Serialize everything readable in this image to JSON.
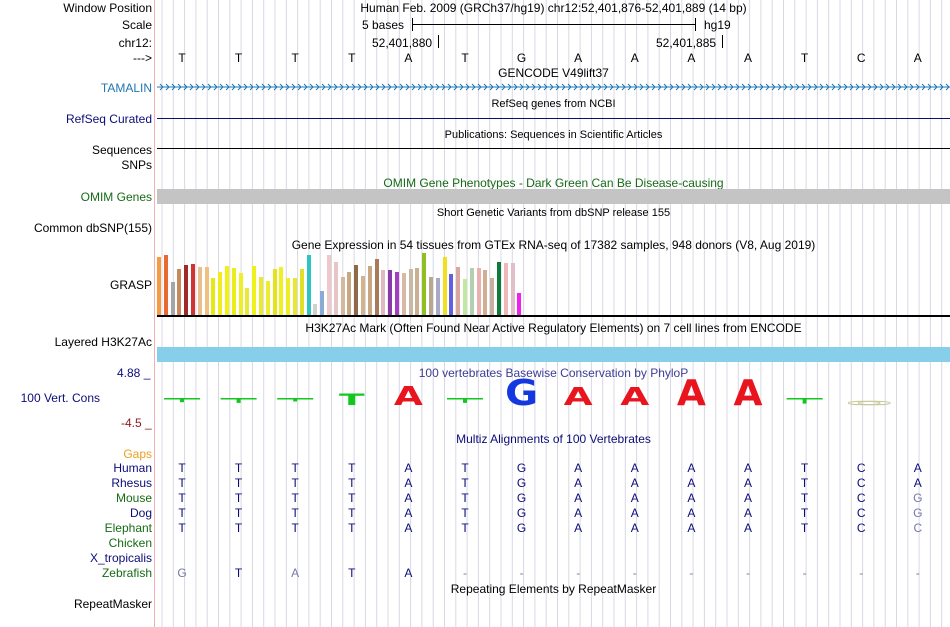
{
  "header": {
    "window_position_label": "Window Position",
    "position_text": "Human Feb. 2009 (GRCh37/hg19)   chr12:52,401,876-52,401,889 (14 bp)",
    "scale_label": "Scale",
    "scale_bases": "5 bases",
    "scale_assembly": "hg19",
    "chrom_label": "chr12:",
    "tick_left": "52,401,880",
    "tick_right": "52,401,885",
    "strand_label": "--->",
    "bases": [
      "T",
      "T",
      "T",
      "T",
      "A",
      "T",
      "G",
      "A",
      "A",
      "A",
      "A",
      "T",
      "C",
      "A"
    ]
  },
  "tracks": {
    "gencode": {
      "title": "GENCODE V49lift37",
      "label": "TAMALIN",
      "color": "#1f77b4"
    },
    "refseq": {
      "title": "RefSeq genes from NCBI",
      "label": "RefSeq Curated",
      "color": "#0c0c78"
    },
    "publications": {
      "title": "Publications: Sequences in Scientific Articles",
      "label": "Sequences"
    },
    "snps": {
      "label": "SNPs"
    },
    "omim": {
      "title": "OMIM Gene Phenotypes - Dark Green Can Be Disease-causing",
      "label": "OMIM Genes",
      "color": "#156b15"
    },
    "dbsnp": {
      "title": "Short Genetic Variants from dbSNP release 155",
      "label": "Common dbSNP(155)"
    },
    "gtex": {
      "title": "Gene Expression in 54 tissues from GTEx RNA-seq of 17382 samples, 948 donors (V8, Aug 2019)",
      "label": "GRASP",
      "bars": [
        {
          "v": 0.94,
          "c": "#f59b42"
        },
        {
          "v": 0.96,
          "c": "#e86a30"
        },
        {
          "v": 0.54,
          "c": "#a6a6a6"
        },
        {
          "v": 0.74,
          "c": "#c88a5c"
        },
        {
          "v": 0.8,
          "c": "#9e2a2a"
        },
        {
          "v": 0.82,
          "c": "#d13232"
        },
        {
          "v": 0.77,
          "c": "#e8c090"
        },
        {
          "v": 0.78,
          "c": "#f0c080"
        },
        {
          "v": 0.6,
          "c": "#e8e812"
        },
        {
          "v": 0.7,
          "c": "#eded20"
        },
        {
          "v": 0.79,
          "c": "#f2f20e"
        },
        {
          "v": 0.75,
          "c": "#ecec1a"
        },
        {
          "v": 0.68,
          "c": "#eeee2a"
        },
        {
          "v": 0.44,
          "c": "#e8e836"
        },
        {
          "v": 0.79,
          "c": "#f0f01c"
        },
        {
          "v": 0.62,
          "c": "#eaea2a"
        },
        {
          "v": 0.55,
          "c": "#eded30"
        },
        {
          "v": 0.74,
          "c": "#e4e41e"
        },
        {
          "v": 0.77,
          "c": "#f0f01e"
        },
        {
          "v": 0.6,
          "c": "#eeee28"
        },
        {
          "v": 0.6,
          "c": "#e8e830"
        },
        {
          "v": 0.74,
          "c": "#e0e028"
        },
        {
          "v": 0.96,
          "c": "#2ec4c4"
        },
        {
          "v": 0.18,
          "c": "#d0d0d0"
        },
        {
          "v": 0.38,
          "c": "#8aaad8"
        },
        {
          "v": 0.96,
          "c": "#f0c8c8"
        },
        {
          "v": 0.86,
          "c": "#e8c4c4"
        },
        {
          "v": 0.62,
          "c": "#d4b8a0"
        },
        {
          "v": 0.7,
          "c": "#c8a880"
        },
        {
          "v": 0.8,
          "c": "#8c6a4a"
        },
        {
          "v": 0.63,
          "c": "#d2b48c"
        },
        {
          "v": 0.79,
          "c": "#c8a882"
        },
        {
          "v": 0.9,
          "c": "#a87a5a"
        },
        {
          "v": 0.72,
          "c": "#e0b8c0"
        },
        {
          "v": 0.72,
          "c": "#8a3aa8"
        },
        {
          "v": 0.7,
          "c": "#a040c0"
        },
        {
          "v": 0.68,
          "c": "#d8b8a8"
        },
        {
          "v": 0.74,
          "c": "#c8b8a8"
        },
        {
          "v": 0.76,
          "c": "#c8b090"
        },
        {
          "v": 1.0,
          "c": "#90c020"
        },
        {
          "v": 0.62,
          "c": "#b8a890"
        },
        {
          "v": 0.6,
          "c": "#a8a8c8"
        },
        {
          "v": 0.94,
          "c": "#f0e020"
        },
        {
          "v": 0.66,
          "c": "#6060e0"
        },
        {
          "v": 0.78,
          "c": "#d8a8a0"
        },
        {
          "v": 0.58,
          "c": "#c0e8a0"
        },
        {
          "v": 0.76,
          "c": "#b0d0b0"
        },
        {
          "v": 0.76,
          "c": "#e8b0b0"
        },
        {
          "v": 0.72,
          "c": "#d0b090"
        },
        {
          "v": 0.6,
          "c": "#c8b0a0"
        },
        {
          "v": 0.86,
          "c": "#107a3a"
        },
        {
          "v": 0.84,
          "c": "#f0b8b8"
        },
        {
          "v": 0.84,
          "c": "#e0c0c8"
        },
        {
          "v": 0.36,
          "c": "#f020f0"
        }
      ]
    },
    "h3k27ac": {
      "title": "H3K27Ac Mark (Often Found Near Active Regulatory Elements) on 7 cell lines from ENCODE",
      "label": "Layered H3K27Ac",
      "color": "#87ceeb"
    },
    "phylop": {
      "title": "100 vertebrates Basewise Conservation by PhyloP",
      "label": "100 Vert. Cons",
      "max_label": "4.88 _",
      "min_label": "-4.5 _",
      "title_color": "#3c3c96",
      "scores": [
        -0.3,
        -0.35,
        -0.25,
        1.5,
        2.4,
        -0.35,
        3.3,
        2.3,
        2.3,
        3.3,
        3.3,
        -0.4,
        0,
        0
      ]
    },
    "multiz": {
      "title": "Multiz Alignments of 100 Vertebrates",
      "gaps_label": "Gaps",
      "rows": [
        {
          "label": "Human",
          "color": "#0c0c78",
          "bases": [
            "T",
            "T",
            "T",
            "T",
            "A",
            "T",
            "G",
            "A",
            "A",
            "A",
            "A",
            "T",
            "C",
            "A"
          ],
          "dim": []
        },
        {
          "label": "Rhesus",
          "color": "#0c0c78",
          "bases": [
            "T",
            "T",
            "T",
            "T",
            "A",
            "T",
            "G",
            "A",
            "A",
            "A",
            "A",
            "T",
            "C",
            "A"
          ],
          "dim": []
        },
        {
          "label": "Mouse",
          "color": "#156b15",
          "bases": [
            "T",
            "T",
            "T",
            "T",
            "A",
            "T",
            "G",
            "A",
            "A",
            "A",
            "A",
            "T",
            "C",
            "G"
          ],
          "dim": [
            13
          ]
        },
        {
          "label": "Dog",
          "color": "#0c0c78",
          "bases": [
            "T",
            "T",
            "T",
            "T",
            "A",
            "T",
            "G",
            "A",
            "A",
            "A",
            "A",
            "T",
            "C",
            "G"
          ],
          "dim": [
            13
          ]
        },
        {
          "label": "Elephant",
          "color": "#156b15",
          "bases": [
            "T",
            "T",
            "T",
            "T",
            "A",
            "T",
            "G",
            "A",
            "A",
            "A",
            "A",
            "T",
            "C",
            "C"
          ],
          "dim": [
            13
          ]
        },
        {
          "label": "Chicken",
          "color": "#156b15",
          "bases": [],
          "dim": []
        },
        {
          "label": "X_tropicalis",
          "color": "#0c0c78",
          "bases": [],
          "dim": []
        },
        {
          "label": "Zebrafish",
          "color": "#156b15",
          "bases": [
            "G",
            "T",
            "A",
            "T",
            "A",
            "-",
            "-",
            "-",
            "-",
            "-",
            "-",
            "-",
            "-",
            "-"
          ],
          "dim": [
            0,
            2
          ]
        }
      ]
    },
    "repeatmasker": {
      "title": "Repeating Elements by RepeatMasker",
      "label": "RepeatMasker"
    }
  },
  "colors": {
    "base_color": "#0c0c78",
    "dim_color": "#7878a8",
    "label_blue": "#0c0c78",
    "gaps_orange": "#e8a020",
    "phylop_neg": "#8b1a1a"
  }
}
